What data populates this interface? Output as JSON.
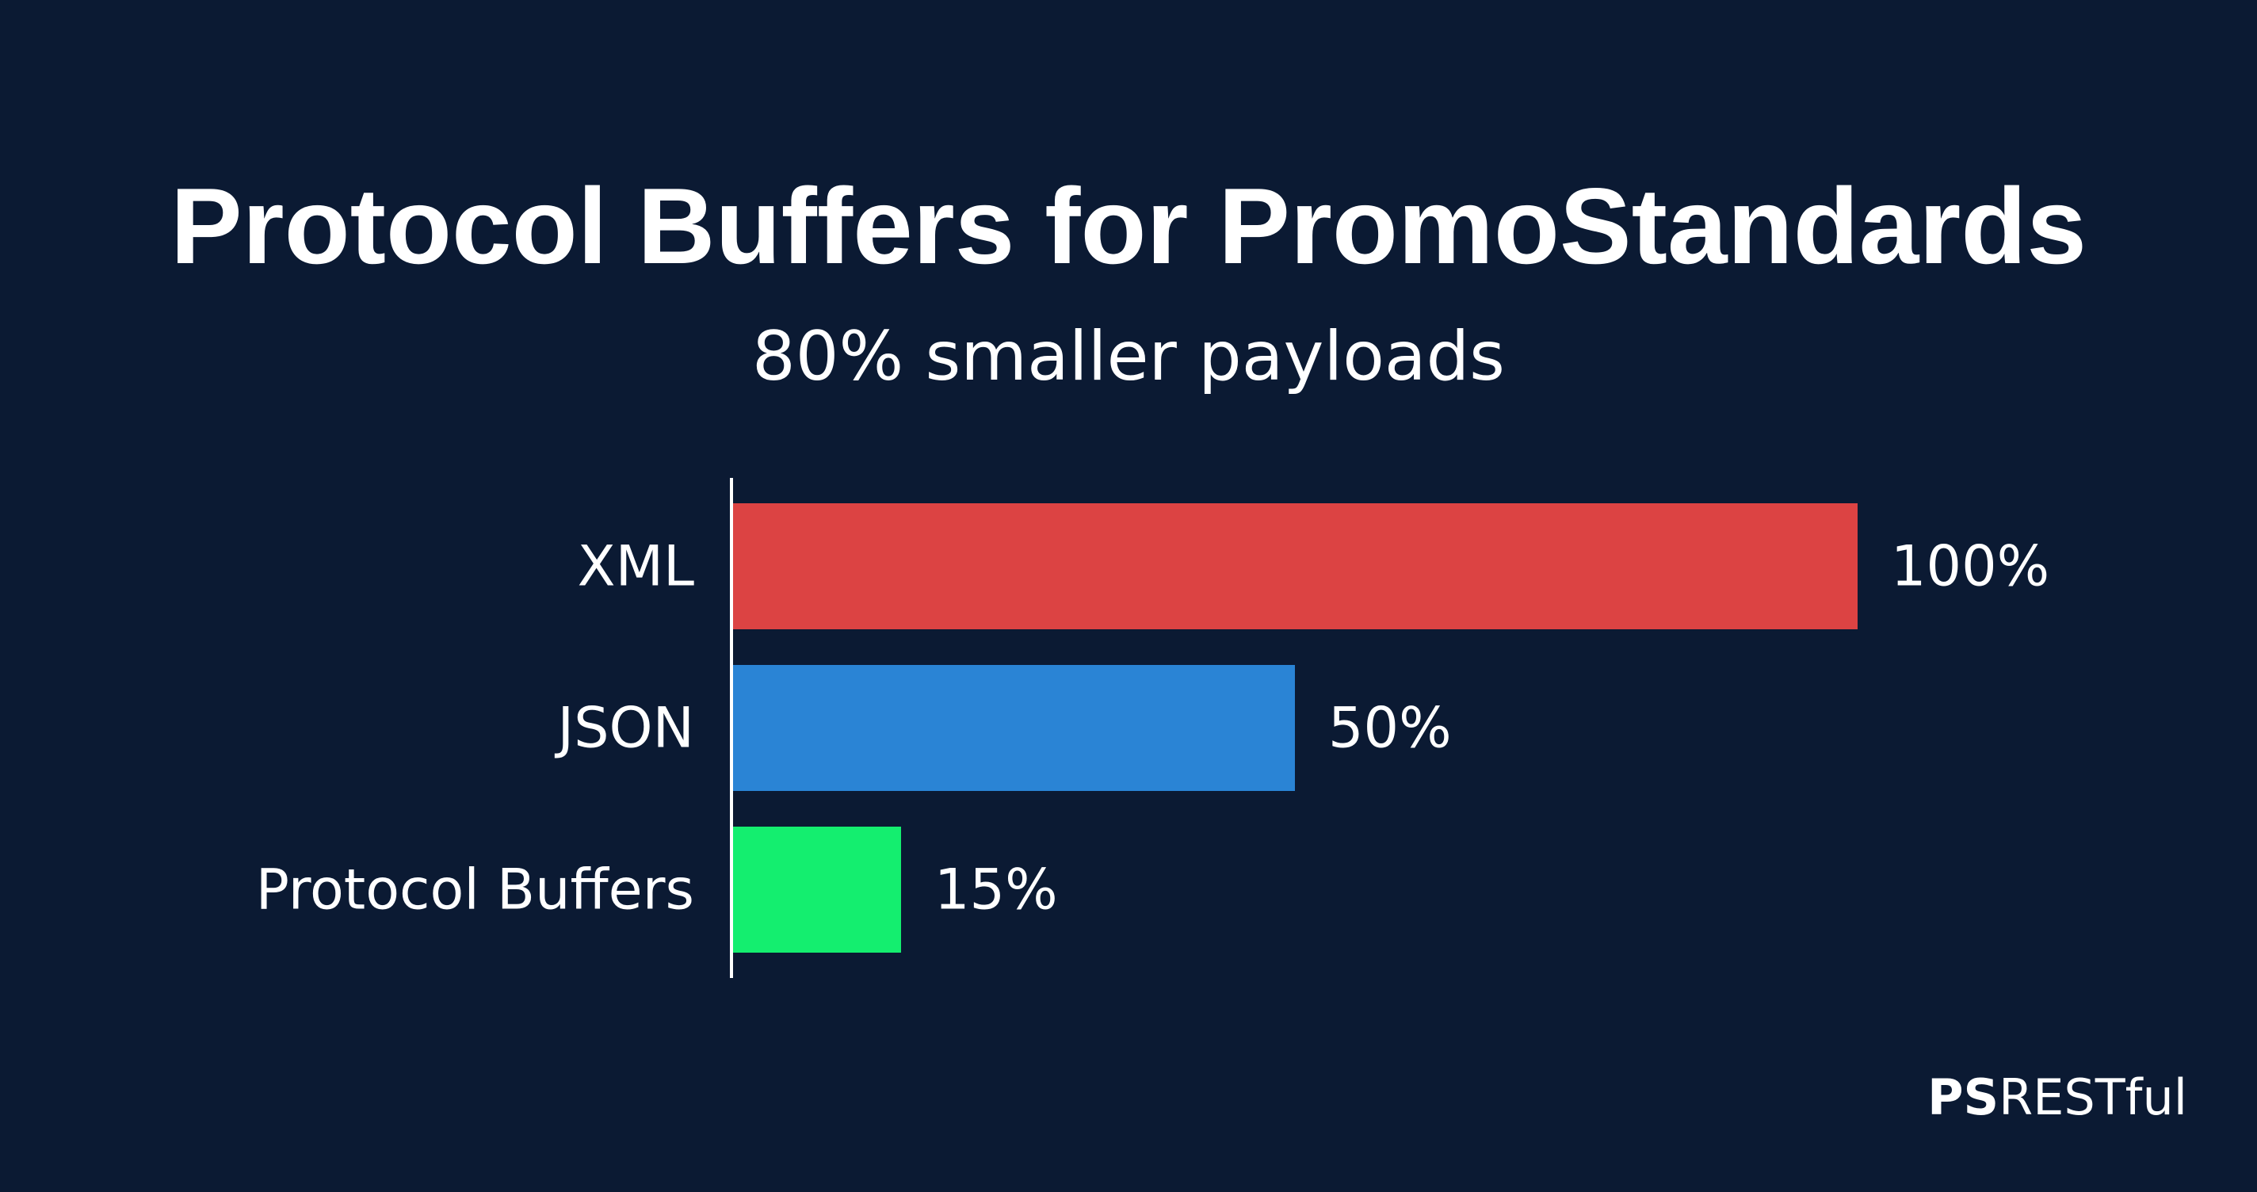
{
  "chart_data": {
    "type": "bar",
    "orientation": "horizontal",
    "title": "Protocol Buffers for PromoStandards",
    "subtitle": "80% smaller payloads",
    "categories": [
      "XML",
      "JSON",
      "Protocol Buffers"
    ],
    "values": [
      100,
      50,
      15
    ],
    "value_labels": [
      "100%",
      "50%",
      "15%"
    ],
    "colors": [
      "#dc4343",
      "#2a84d5",
      "#14ee6f"
    ],
    "xlim": [
      0,
      100
    ],
    "grid": false,
    "legend": "none"
  },
  "brand": {
    "bold": "PS",
    "regular": "RESTful"
  },
  "colors": {
    "background": "#0b1a33",
    "text": "#ffffff",
    "axis": "#ffffff"
  }
}
